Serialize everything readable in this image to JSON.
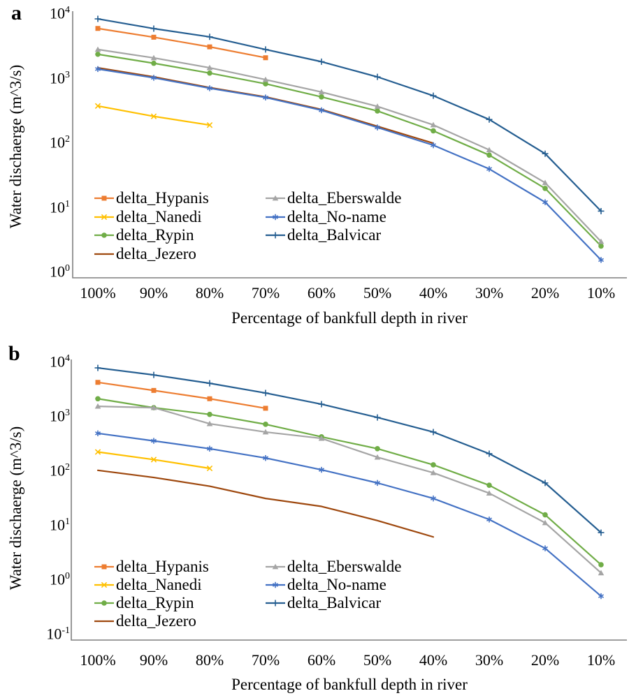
{
  "figure": {
    "background": "#ffffff",
    "axis_color": "#7F7F7F",
    "text_color": "#000000"
  },
  "chart_data": [
    {
      "type": "line",
      "panel_label": "a",
      "xlabel": "Percentage of bankfull depth in river",
      "ylabel": "Water dischaerge (m^3/s)",
      "x_categories": [
        "100%",
        "90%",
        "80%",
        "70%",
        "60%",
        "50%",
        "40%",
        "30%",
        "20%",
        "10%"
      ],
      "y_scale": "log",
      "y_tick_labels": [
        "10^4",
        "10^3",
        "10^2",
        "10^1",
        "10^0"
      ],
      "y_tick_exponents": [
        "4",
        "3",
        "2",
        "1",
        "0"
      ],
      "ylim": [
        1,
        10000
      ],
      "grid": false,
      "legend_position": "inside-lower-left-two-columns",
      "series": [
        {
          "name": "delta_Hypanis",
          "color": "#ED7D31",
          "marker": "square",
          "values": [
            5400,
            3950,
            2800,
            1900,
            null,
            null,
            null,
            null,
            null,
            null
          ]
        },
        {
          "name": "delta_Nanedi",
          "color": "#FFC000",
          "marker": "x",
          "values": [
            340,
            235,
            172,
            null,
            null,
            null,
            null,
            null,
            null,
            null
          ]
        },
        {
          "name": "delta_Rypin",
          "color": "#70AD47",
          "marker": "circle",
          "values": [
            2150,
            1560,
            1100,
            750,
            470,
            285,
            140,
            59,
            18,
            2.3
          ]
        },
        {
          "name": "delta_Jezero",
          "color": "#9E480E",
          "marker": "none",
          "values": [
            1330,
            960,
            655,
            470,
            300,
            165,
            90,
            null,
            null,
            null
          ]
        },
        {
          "name": "delta_Eberswalde",
          "color": "#A5A5A5",
          "marker": "triangle",
          "values": [
            2550,
            1890,
            1330,
            870,
            560,
            335,
            173,
            71,
            22,
            2.7
          ]
        },
        {
          "name": "delta_No-name",
          "color": "#4472C4",
          "marker": "asterisk",
          "values": [
            1270,
            930,
            640,
            460,
            292,
            158,
            84,
            36,
            11,
            1.4
          ]
        },
        {
          "name": "delta_Balvicar",
          "color": "#255E91",
          "marker": "plus",
          "values": [
            7600,
            5370,
            4000,
            2550,
            1650,
            960,
            490,
            210,
            62,
            8
          ]
        }
      ]
    },
    {
      "type": "line",
      "panel_label": "b",
      "xlabel": "Percentage of bankfull depth in river",
      "ylabel": "Water dischaerge (m^3/s)",
      "x_categories": [
        "100%",
        "90%",
        "80%",
        "70%",
        "60%",
        "50%",
        "40%",
        "30%",
        "20%",
        "10%"
      ],
      "y_scale": "log",
      "y_tick_labels": [
        "10^4",
        "10^3",
        "10^2",
        "10^1",
        "10^0",
        "10^-1"
      ],
      "y_tick_exponents": [
        "4",
        "3",
        "2",
        "1",
        "0",
        "-1"
      ],
      "ylim": [
        0.1,
        10000
      ],
      "grid": false,
      "legend_position": "inside-lower-left-two-columns",
      "series": [
        {
          "name": "delta_Hypanis",
          "color": "#ED7D31",
          "marker": "square",
          "values": [
            3800,
            2700,
            1900,
            1270,
            null,
            null,
            null,
            null,
            null,
            null
          ]
        },
        {
          "name": "delta_Nanedi",
          "color": "#FFC000",
          "marker": "x",
          "values": [
            200,
            145,
            100,
            null,
            null,
            null,
            null,
            null,
            null,
            null
          ]
        },
        {
          "name": "delta_Rypin",
          "color": "#70AD47",
          "marker": "circle",
          "values": [
            1900,
            1300,
            980,
            645,
            380,
            230,
            116,
            49,
            14,
            1.7
          ]
        },
        {
          "name": "delta_Jezero",
          "color": "#9E480E",
          "marker": "none",
          "values": [
            92,
            68,
            47,
            28,
            20,
            11,
            5.5,
            null,
            null,
            null
          ]
        },
        {
          "name": "delta_Eberswalde",
          "color": "#A5A5A5",
          "marker": "triangle",
          "values": [
            1380,
            1300,
            660,
            465,
            355,
            160,
            83,
            35,
            10,
            1.2
          ]
        },
        {
          "name": "delta_No-name",
          "color": "#4472C4",
          "marker": "asterisk",
          "values": [
            440,
            320,
            230,
            155,
            94,
            54,
            28,
            11.5,
            3.4,
            0.45
          ]
        },
        {
          "name": "delta_Balvicar",
          "color": "#255E91",
          "marker": "plus",
          "values": [
            7000,
            5200,
            3650,
            2420,
            1510,
            860,
            465,
            186,
            54,
            6.6
          ]
        }
      ]
    }
  ]
}
